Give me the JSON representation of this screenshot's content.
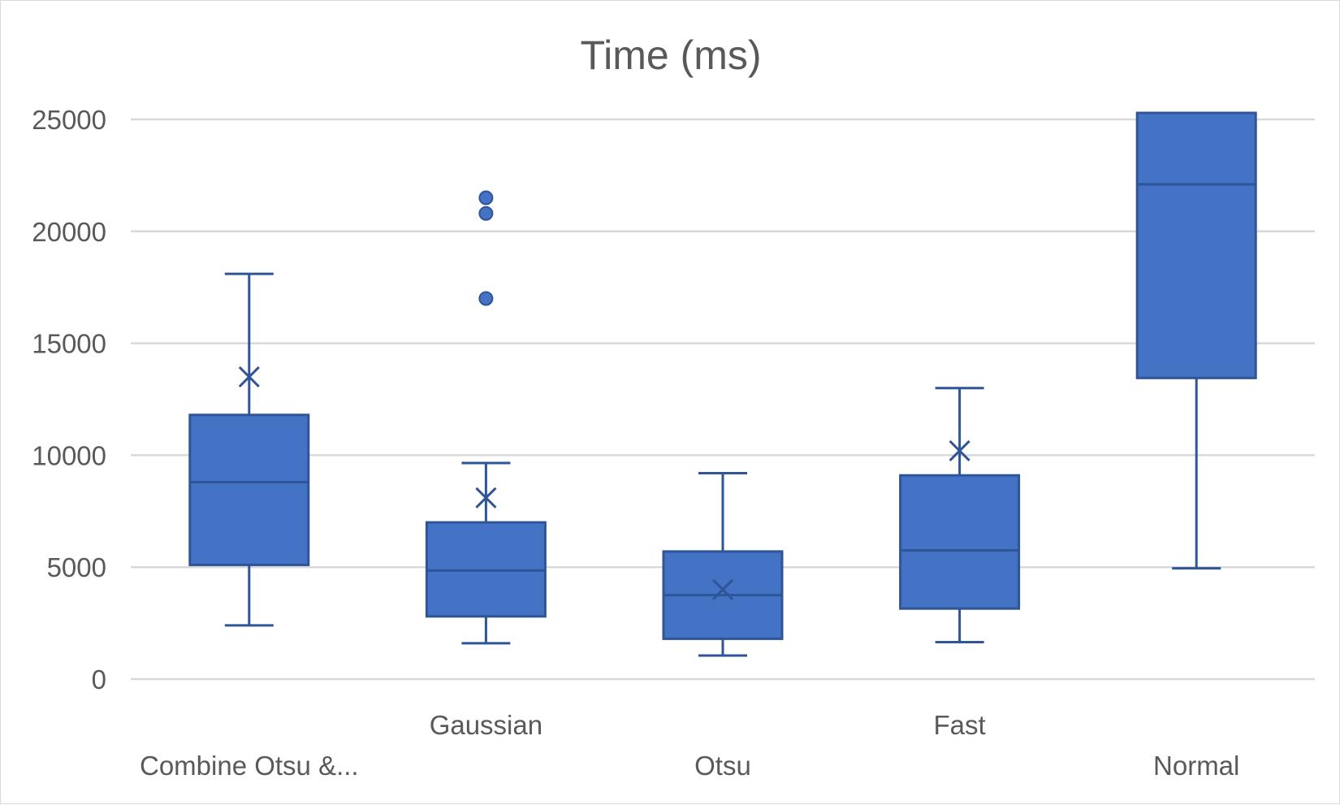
{
  "chart_data": {
    "type": "box",
    "title": "Time (ms)",
    "xlabel": "",
    "ylabel": "",
    "ylim": [
      0,
      25000
    ],
    "yticks": [
      0,
      5000,
      10000,
      15000,
      20000,
      25000
    ],
    "grid": true,
    "legend": "none",
    "colors": {
      "box_fill": "#4472C4",
      "box_stroke": "#2F5597",
      "grid": "#d9d9d9",
      "text": "#595959"
    },
    "categories": [
      "Combine Otsu &...",
      "Gaussian",
      "Otsu",
      "Fast",
      "Normal"
    ],
    "boxes": [
      {
        "category": "Combine Otsu &...",
        "min": 2400,
        "q1": 5100,
        "median": 8800,
        "q3": 11800,
        "max": 18100,
        "mean": 13500,
        "outliers": []
      },
      {
        "category": "Gaussian",
        "min": 1600,
        "q1": 2800,
        "median": 4850,
        "q3": 7000,
        "max": 9650,
        "mean": 8100,
        "outliers": [
          17000,
          20800,
          21500
        ]
      },
      {
        "category": "Otsu",
        "min": 1050,
        "q1": 1800,
        "median": 3750,
        "q3": 5700,
        "max": 9200,
        "mean": 4000,
        "outliers": []
      },
      {
        "category": "Fast",
        "min": 1650,
        "q1": 3150,
        "median": 5750,
        "q3": 9100,
        "max": 13000,
        "mean": 10200,
        "outliers": []
      },
      {
        "category": "Normal",
        "min": 4950,
        "q1": 13450,
        "median": 22100,
        "q3": 25000,
        "max": 25000,
        "mean": null,
        "outliers": []
      }
    ]
  }
}
